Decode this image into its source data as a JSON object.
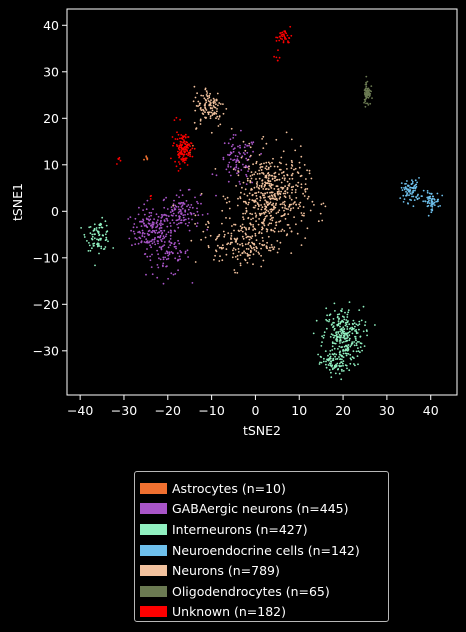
{
  "chart_data": {
    "type": "scatter",
    "xlabel": "tSNE2",
    "ylabel": "tSNE1",
    "xlim": [
      -43,
      46
    ],
    "ylim": [
      -39.5,
      43.5
    ],
    "x_ticks": [
      -40,
      -30,
      -20,
      -10,
      0,
      10,
      20,
      30,
      40
    ],
    "y_ticks": [
      -30,
      -20,
      -10,
      0,
      10,
      20,
      30,
      40
    ],
    "grid": false,
    "legend_position": "below",
    "series": [
      {
        "name": "Astrocytes (n=10)",
        "color": "#f07030",
        "clusters": [
          {
            "cx": -24.8,
            "cy": 11.3,
            "sx": 0.3,
            "sy": 0.4,
            "n": 6
          },
          {
            "cx": -14.0,
            "cy": 14.0,
            "sx": 1.2,
            "sy": 1.0,
            "n": 4
          }
        ]
      },
      {
        "name": "GABAergic neurons (n=445)",
        "color": "#a855c8",
        "clusters": [
          {
            "cx": -24.0,
            "cy": -4.0,
            "sx": 2.2,
            "sy": 2.2,
            "n": 150
          },
          {
            "cx": -17.0,
            "cy": 0.0,
            "sx": 2.2,
            "sy": 2.0,
            "n": 120
          },
          {
            "cx": -20.0,
            "cy": -9.0,
            "sx": 2.5,
            "sy": 2.5,
            "n": 90
          },
          {
            "cx": -4.0,
            "cy": 10.5,
            "sx": 2.2,
            "sy": 2.8,
            "n": 85
          }
        ]
      },
      {
        "name": "Interneurons (n=427)",
        "color": "#90f0c0",
        "clusters": [
          {
            "cx": -35.8,
            "cy": -5.2,
            "sx": 1.4,
            "sy": 1.6,
            "n": 80
          },
          {
            "cx": 20.0,
            "cy": -27.0,
            "sx": 2.3,
            "sy": 3.2,
            "n": 280
          },
          {
            "cx": 18.0,
            "cy": -33.0,
            "sx": 1.5,
            "sy": 1.2,
            "n": 67
          }
        ]
      },
      {
        "name": "Neuroendocrine cells (n=142)",
        "color": "#6ec0ec",
        "clusters": [
          {
            "cx": 35.5,
            "cy": 4.5,
            "sx": 1.1,
            "sy": 1.3,
            "n": 80
          },
          {
            "cx": 40.0,
            "cy": 2.2,
            "sx": 1.0,
            "sy": 1.0,
            "n": 62
          }
        ]
      },
      {
        "name": "Neurons (n=789)",
        "color": "#f2c29e",
        "clusters": [
          {
            "cx": 3.5,
            "cy": 3.0,
            "sx": 4.2,
            "sy": 4.8,
            "n": 520
          },
          {
            "cx": -3.0,
            "cy": -7.0,
            "sx": 3.2,
            "sy": 2.6,
            "n": 150
          },
          {
            "cx": -10.5,
            "cy": 22.5,
            "sx": 1.8,
            "sy": 2.2,
            "n": 110
          },
          {
            "cx": -12.0,
            "cy": -3.0,
            "sx": 2.0,
            "sy": 2.0,
            "n": 9
          }
        ]
      },
      {
        "name": "Oligodendrocytes (n=65)",
        "color": "#6b7a52",
        "clusters": [
          {
            "cx": 25.5,
            "cy": 25.5,
            "sx": 0.4,
            "sy": 1.4,
            "n": 65
          }
        ]
      },
      {
        "name": "Unknown (n=182)",
        "color": "#ff0000",
        "clusters": [
          {
            "cx": -16.5,
            "cy": 13.5,
            "sx": 1.0,
            "sy": 1.6,
            "n": 130
          },
          {
            "cx": 6.5,
            "cy": 37.5,
            "sx": 0.9,
            "sy": 0.8,
            "n": 35
          },
          {
            "cx": -31.0,
            "cy": 11.0,
            "sx": 0.3,
            "sy": 0.5,
            "n": 5
          },
          {
            "cx": 5.0,
            "cy": 33.0,
            "sx": 0.3,
            "sy": 0.8,
            "n": 6
          },
          {
            "cx": -24.0,
            "cy": 3.0,
            "sx": 0.3,
            "sy": 0.3,
            "n": 3
          },
          {
            "cx": -18.0,
            "cy": 20.0,
            "sx": 0.5,
            "sy": 0.5,
            "n": 3
          }
        ]
      }
    ]
  }
}
